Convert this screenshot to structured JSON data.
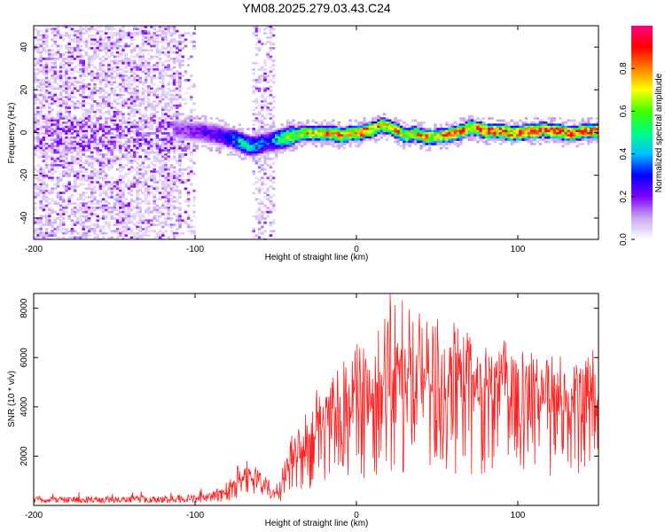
{
  "chart_data": [
    {
      "type": "heatmap",
      "title": "YM08.2025.279.03.43.C24",
      "xlabel": "Height of straight line (km)",
      "ylabel": "Frequency (Hz)",
      "xlim": [
        -200,
        150
      ],
      "ylim": [
        -50,
        50
      ],
      "xticks": [
        -200,
        -100,
        0,
        100
      ],
      "yticks": [
        -40,
        -20,
        0,
        20,
        40
      ],
      "colorbar": {
        "label": "Normalized spectral amplitude",
        "range": [
          0,
          1
        ],
        "ticks": [
          0.0,
          0.2,
          0.4,
          0.6,
          0.8
        ],
        "tick_labels": [
          "0.0",
          "0.2",
          "0.4",
          "0.6",
          "0.8"
        ],
        "colors": [
          "#ffffff",
          "#c8a8f0",
          "#8000ff",
          "#0000ff",
          "#00c0ff",
          "#00ff80",
          "#40ff00",
          "#ffff00",
          "#ff8000",
          "#ff0000",
          "#ff0080"
        ]
      },
      "ridge": {
        "x": [
          -115,
          -100,
          -90,
          -80,
          -75,
          -70,
          -65,
          -60,
          -55,
          -50,
          -45,
          -40,
          -35,
          -30,
          -25,
          -20,
          -15,
          -10,
          -5,
          0,
          5,
          10,
          15,
          20,
          25,
          30,
          35,
          40,
          45,
          50,
          55,
          60,
          65,
          70,
          75,
          80,
          85,
          90,
          95,
          100,
          105,
          110,
          115,
          120,
          125,
          130,
          135,
          140,
          145,
          150
        ],
        "freq": [
          2,
          1,
          0,
          -2,
          -3,
          -5,
          -6,
          -5,
          -4,
          -3,
          -2,
          -1,
          0,
          0,
          0,
          0,
          0,
          -1,
          0,
          0,
          1,
          2,
          4,
          3,
          1,
          -1,
          0,
          -1,
          -2,
          -1,
          -1,
          0,
          1,
          3,
          2,
          1,
          1,
          1,
          0,
          0,
          1,
          1,
          2,
          1,
          1,
          0,
          0,
          1,
          1,
          1
        ],
        "amplitude": [
          0.15,
          0.2,
          0.25,
          0.3,
          0.4,
          0.45,
          0.4,
          0.35,
          0.3,
          0.45,
          0.55,
          0.6,
          0.65,
          0.7,
          0.7,
          0.75,
          0.7,
          0.75,
          0.75,
          0.8,
          0.8,
          0.75,
          0.7,
          0.7,
          0.75,
          0.7,
          0.7,
          0.75,
          0.75,
          0.7,
          0.8,
          0.8,
          0.8,
          0.75,
          0.8,
          0.85,
          0.85,
          0.8,
          0.8,
          0.85,
          0.85,
          0.85,
          0.85,
          0.8,
          0.85,
          0.85,
          0.8,
          0.8,
          0.8,
          0.8
        ]
      },
      "noise_region_km": [
        -200,
        -100
      ],
      "noise_column_km": [
        -65,
        -52
      ]
    },
    {
      "type": "line",
      "xlabel": "Height of straight line (km)",
      "ylabel": "SNR (10 * v/v)",
      "xlim": [
        -200,
        150
      ],
      "ylim": [
        0,
        8600
      ],
      "xticks": [
        -200,
        -100,
        0,
        100
      ],
      "yticks": [
        2000,
        4000,
        6000,
        8000
      ],
      "series": [
        {
          "name": "SNR",
          "color": "#ff2020",
          "envelope_km": [
            -200,
            -150,
            -100,
            -90,
            -80,
            -75,
            -70,
            -65,
            -60,
            -55,
            -50,
            -45,
            -40,
            -35,
            -30,
            -25,
            -20,
            -15,
            -10,
            -5,
            0,
            5,
            10,
            15,
            20,
            25,
            30,
            35,
            40,
            45,
            50,
            55,
            60,
            65,
            70,
            75,
            80,
            85,
            90,
            95,
            100,
            105,
            110,
            115,
            120,
            125,
            130,
            135,
            140,
            145,
            150
          ],
          "mean": [
            220,
            230,
            260,
            320,
            450,
            650,
            900,
            1100,
            900,
            500,
            350,
            650,
            1400,
            1800,
            2100,
            2400,
            2700,
            2900,
            3000,
            3200,
            3400,
            3600,
            3800,
            3900,
            4000,
            4050,
            4100,
            4150,
            4200,
            4200,
            4250,
            4200,
            4150,
            4100,
            4100,
            4050,
            4000,
            3950,
            3900,
            3850,
            3850,
            3800,
            3750,
            3700,
            3700,
            3650,
            3650,
            3600,
            3600,
            3550,
            3500
          ],
          "peak": [
            450,
            500,
            650,
            900,
            1300,
            1700,
            1950,
            2000,
            1800,
            1100,
            800,
            1700,
            3000,
            3600,
            4200,
            4700,
            5200,
            5600,
            6000,
            6300,
            6700,
            7000,
            7600,
            8300,
            8600,
            8500,
            8400,
            8550,
            8300,
            8000,
            7900,
            7600,
            7400,
            7500,
            7200,
            7000,
            6800,
            6600,
            6800,
            6700,
            6600,
            6500,
            6300,
            6400,
            6200,
            6300,
            6000,
            5800,
            6200,
            6400,
            6600
          ]
        }
      ]
    }
  ]
}
